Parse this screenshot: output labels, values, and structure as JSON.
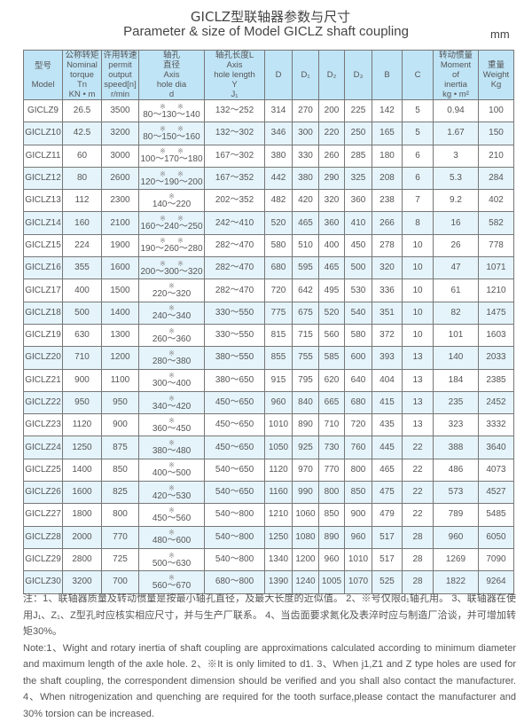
{
  "title_cn": "GICLZ型联轴器参数与尺寸",
  "title_en": "Parameter & size of Model GICLZ shaft coupling",
  "unit": "mm",
  "headers": [
    [
      "型号",
      "",
      "Model"
    ],
    [
      "公称转矩",
      "Nominal",
      "torque",
      "Tn",
      "KN • m"
    ],
    [
      "许用转速",
      "permit",
      "output",
      "speed[n]",
      "r/min"
    ],
    [
      "轴孔",
      "直径",
      "Axis",
      "hole dia",
      "d"
    ],
    [
      "轴孔长度L",
      "Axis",
      "hole length",
      "Y",
      "J₁"
    ],
    [
      "D"
    ],
    [
      "D₁"
    ],
    [
      "D₂"
    ],
    [
      "D₃"
    ],
    [
      "B"
    ],
    [
      "C"
    ],
    [
      "转动惯量",
      "Moment",
      "of",
      "inertia",
      "kg • m²"
    ],
    [
      "重量",
      "Weight",
      "Kg"
    ]
  ],
  "rows": [
    {
      "model": "GICLZ9",
      "tn": "26.5",
      "n": "3500",
      "stars": "※      ※",
      "d": "80～130～140",
      "l": "132～252",
      "D": "314",
      "D1": "270",
      "D2": "200",
      "D3": "225",
      "B": "142",
      "C": "5",
      "inertia": "0.94",
      "weight": "100"
    },
    {
      "model": "GICLZ10",
      "tn": "42.5",
      "n": "3200",
      "stars": "※      ※",
      "d": "80～150～160",
      "l": "132～302",
      "D": "346",
      "D1": "300",
      "D2": "220",
      "D3": "250",
      "B": "165",
      "C": "5",
      "inertia": "1.67",
      "weight": "150"
    },
    {
      "model": "GICLZ11",
      "tn": "60",
      "n": "3000",
      "stars": "※      ※",
      "d": "100～170～180",
      "l": "167～302",
      "D": "380",
      "D1": "330",
      "D2": "260",
      "D3": "285",
      "B": "180",
      "C": "6",
      "inertia": "3",
      "weight": "210"
    },
    {
      "model": "GICLZ12",
      "tn": "80",
      "n": "2600",
      "stars": "※      ※",
      "d": "120～190～200",
      "l": "167～352",
      "D": "442",
      "D1": "380",
      "D2": "290",
      "D3": "325",
      "B": "208",
      "C": "6",
      "inertia": "5.3",
      "weight": "284"
    },
    {
      "model": "GICLZ13",
      "tn": "112",
      "n": "2300",
      "stars": "※",
      "d": "140～220",
      "l": "202～352",
      "D": "482",
      "D1": "420",
      "D2": "320",
      "D3": "360",
      "B": "238",
      "C": "7",
      "inertia": "9.2",
      "weight": "402"
    },
    {
      "model": "GICLZ14",
      "tn": "160",
      "n": "2100",
      "stars": "※      ※",
      "d": "160～240～250",
      "l": "242～410",
      "D": "520",
      "D1": "465",
      "D2": "360",
      "D3": "410",
      "B": "266",
      "C": "8",
      "inertia": "16",
      "weight": "582"
    },
    {
      "model": "GICLZ15",
      "tn": "224",
      "n": "1900",
      "stars": "※      ※",
      "d": "190～260～280",
      "l": "282～470",
      "D": "580",
      "D1": "510",
      "D2": "400",
      "D3": "450",
      "B": "278",
      "C": "10",
      "inertia": "26",
      "weight": "778"
    },
    {
      "model": "GICLZ16",
      "tn": "355",
      "n": "1600",
      "stars": "※      ※",
      "d": "200～300～320",
      "l": "282～470",
      "D": "680",
      "D1": "595",
      "D2": "465",
      "D3": "500",
      "B": "320",
      "C": "10",
      "inertia": "47",
      "weight": "1071"
    },
    {
      "model": "GICLZ17",
      "tn": "400",
      "n": "1500",
      "stars": "※",
      "d": "220～320",
      "l": "282～470",
      "D": "720",
      "D1": "642",
      "D2": "495",
      "D3": "530",
      "B": "336",
      "C": "10",
      "inertia": "61",
      "weight": "1210"
    },
    {
      "model": "GICLZ18",
      "tn": "500",
      "n": "1400",
      "stars": "※",
      "d": "240～340",
      "l": "330～550",
      "D": "775",
      "D1": "675",
      "D2": "520",
      "D3": "540",
      "B": "351",
      "C": "10",
      "inertia": "82",
      "weight": "1475"
    },
    {
      "model": "GICLZ19",
      "tn": "630",
      "n": "1300",
      "stars": "※",
      "d": "260～360",
      "l": "330～550",
      "D": "815",
      "D1": "715",
      "D2": "560",
      "D3": "580",
      "B": "372",
      "C": "10",
      "inertia": "101",
      "weight": "1603"
    },
    {
      "model": "GICLZ20",
      "tn": "710",
      "n": "1200",
      "stars": "※",
      "d": "280～380",
      "l": "380～550",
      "D": "855",
      "D1": "755",
      "D2": "585",
      "D3": "600",
      "B": "393",
      "C": "13",
      "inertia": "140",
      "weight": "2033"
    },
    {
      "model": "GICLZ21",
      "tn": "900",
      "n": "1100",
      "stars": "※",
      "d": "300～400",
      "l": "380～650",
      "D": "915",
      "D1": "795",
      "D2": "620",
      "D3": "640",
      "B": "404",
      "C": "13",
      "inertia": "184",
      "weight": "2385"
    },
    {
      "model": "GICLZ22",
      "tn": "950",
      "n": "950",
      "stars": "※",
      "d": "340～420",
      "l": "450～650",
      "D": "960",
      "D1": "840",
      "D2": "665",
      "D3": "680",
      "B": "415",
      "C": "13",
      "inertia": "235",
      "weight": "2452"
    },
    {
      "model": "GICLZ23",
      "tn": "1120",
      "n": "900",
      "stars": "※",
      "d": "360～450",
      "l": "450～650",
      "D": "1010",
      "D1": "890",
      "D2": "710",
      "D3": "720",
      "B": "435",
      "C": "13",
      "inertia": "323",
      "weight": "3332"
    },
    {
      "model": "GICLZ24",
      "tn": "1250",
      "n": "875",
      "stars": "※",
      "d": "380～480",
      "l": "450～650",
      "D": "1050",
      "D1": "925",
      "D2": "730",
      "D3": "760",
      "B": "445",
      "C": "22",
      "inertia": "388",
      "weight": "3640"
    },
    {
      "model": "GICLZ25",
      "tn": "1400",
      "n": "850",
      "stars": "※",
      "d": "400～500",
      "l": "540～650",
      "D": "1120",
      "D1": "970",
      "D2": "770",
      "D3": "800",
      "B": "465",
      "C": "22",
      "inertia": "486",
      "weight": "4073"
    },
    {
      "model": "GICLZ26",
      "tn": "1600",
      "n": "825",
      "stars": "※",
      "d": "420～530",
      "l": "540～650",
      "D": "1160",
      "D1": "990",
      "D2": "800",
      "D3": "850",
      "B": "475",
      "C": "22",
      "inertia": "573",
      "weight": "4527"
    },
    {
      "model": "GICLZ27",
      "tn": "1800",
      "n": "800",
      "stars": "※",
      "d": "450～560",
      "l": "540～800",
      "D": "1210",
      "D1": "1060",
      "D2": "850",
      "D3": "900",
      "B": "479",
      "C": "22",
      "inertia": "789",
      "weight": "5485"
    },
    {
      "model": "GICLZ28",
      "tn": "2000",
      "n": "770",
      "stars": "※",
      "d": "480～600",
      "l": "540～800",
      "D": "1250",
      "D1": "1080",
      "D2": "890",
      "D3": "960",
      "B": "517",
      "C": "28",
      "inertia": "960",
      "weight": "6050"
    },
    {
      "model": "GICLZ29",
      "tn": "2800",
      "n": "725",
      "stars": "※",
      "d": "500～630",
      "l": "540～800",
      "D": "1340",
      "D1": "1200",
      "D2": "960",
      "D3": "1010",
      "B": "517",
      "C": "28",
      "inertia": "1269",
      "weight": "7090"
    },
    {
      "model": "GICLZ30",
      "tn": "3200",
      "n": "700",
      "stars": "※",
      "d": "560～670",
      "l": "680～800",
      "D": "1390",
      "D1": "1240",
      "D2": "1005",
      "D3": "1070",
      "B": "525",
      "C": "28",
      "inertia": "1822",
      "weight": "9264"
    }
  ],
  "notes": {
    "cn": "注：1、联轴器质量及转动惯量是按最小轴孔直径，及最大长度的近似值。 2、※号仅限d₁轴孔用。 3、联轴器在使用J₁、Z₁、Z型孔时应核实相应尺寸，并与生产厂联系。 4、当齿面要求氮化及表淬时应与制造厂洽谈，并可增加转矩30%。",
    "en": "Note:1、Wight and rotary inertia of shaft coupling are approximations calculated according to minimum diameter and maximum length of the axle hole.   2、※It is only limited to d1.   3、When j1,Z1 and Z type holes are used for the shaft coupling, the correspondent dimension should be verified and you shall also contact the manufacturer.    4、When nitrogenization and quenching are required for the tooth surface,please contact the manufacturer and 30% torsion can be increased."
  },
  "colors": {
    "header_bg": "#bfe4f6",
    "alt_row_bg": "#e5f4fb",
    "border": "#777777"
  }
}
